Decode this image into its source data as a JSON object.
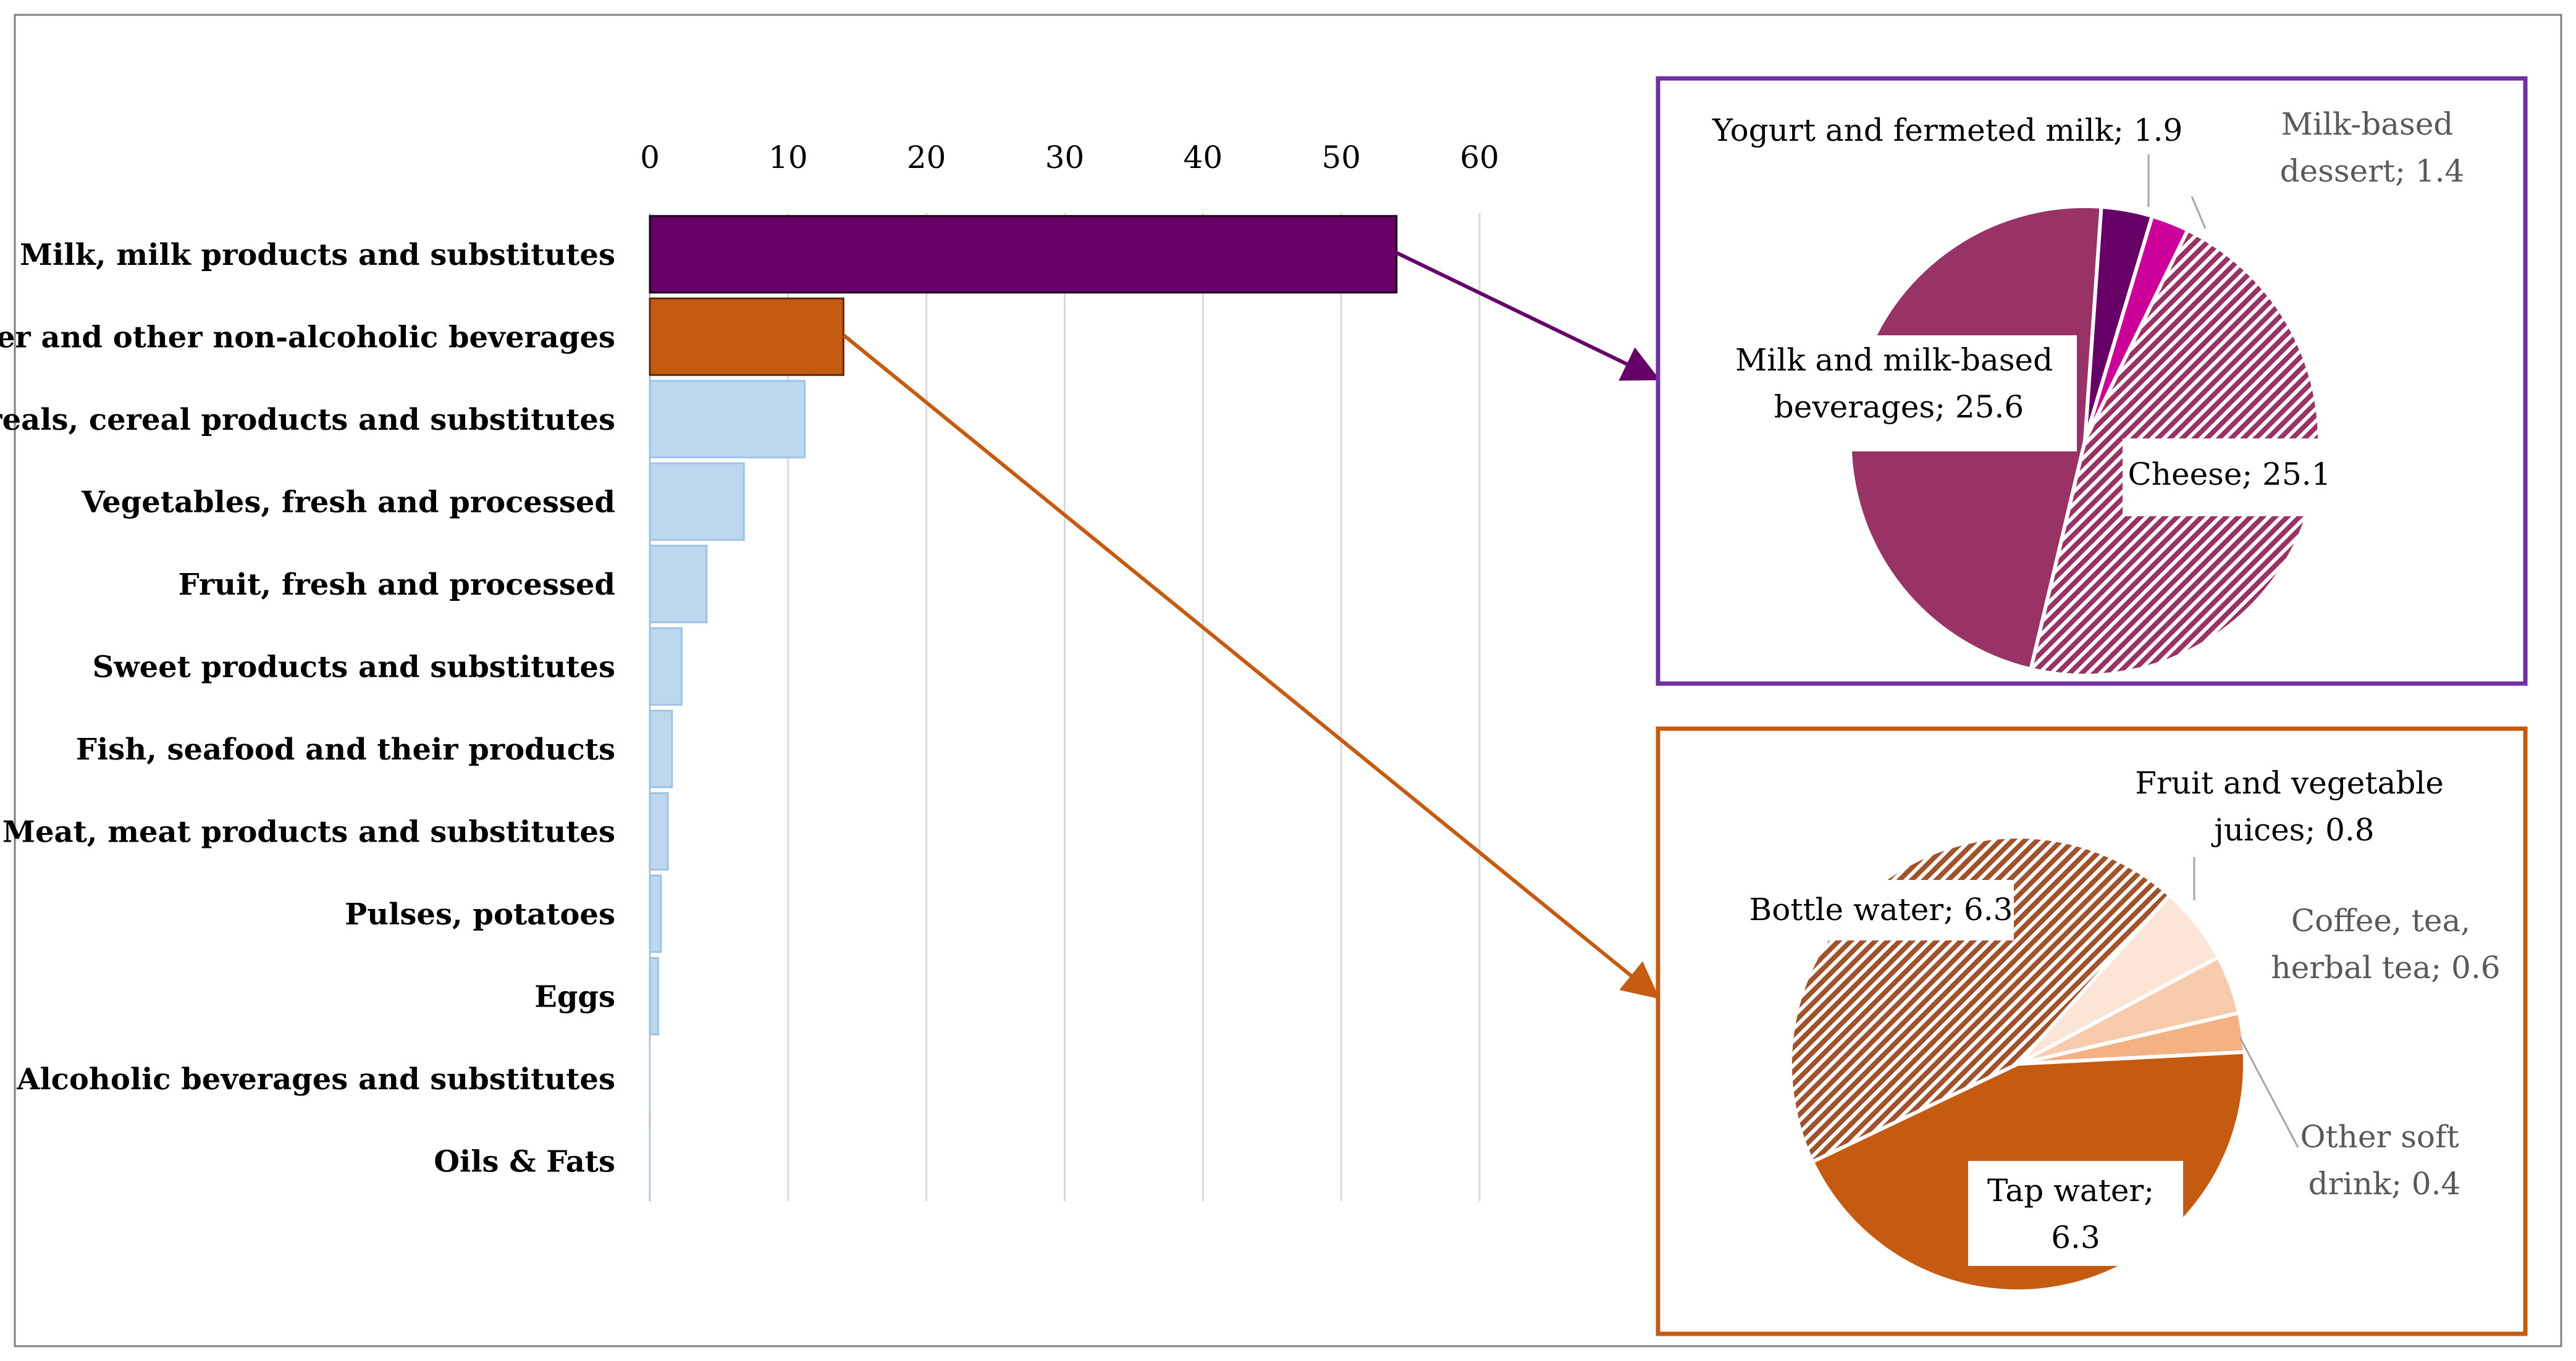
{
  "chart_data": [
    {
      "type": "bar",
      "orientation": "horizontal",
      "categories": [
        "Milk, milk products and substitutes",
        "Water and other non-alcoholic beverages",
        "Cereals, cereal products and substitutes",
        "Vegetables, fresh and processed",
        "Fruit, fresh and processed",
        "Sweet products and substitutes",
        "Fish, seafood and their products",
        "Meat, meat products and substitutes",
        "Pulses, potatoes",
        "Eggs",
        "Alcoholic beverages and substitutes",
        "Oils & Fats"
      ],
      "values": [
        54,
        14,
        11.2,
        6.8,
        4.1,
        2.3,
        1.6,
        1.3,
        0.8,
        0.6,
        0.05,
        0.05
      ],
      "ticks": [
        "0",
        "10",
        "20",
        "30",
        "40",
        "50",
        "60"
      ],
      "xlim": [
        0,
        60
      ],
      "grid": true,
      "xaxis_position": "top",
      "colors": [
        "#660066",
        "#c55a11",
        "#bdd7ee",
        "#bdd7ee",
        "#bdd7ee",
        "#bdd7ee",
        "#bdd7ee",
        "#bdd7ee",
        "#bdd7ee",
        "#bdd7ee",
        "#bdd7ee",
        "#bdd7ee"
      ],
      "title": "",
      "xlabel": "",
      "ylabel": ""
    },
    {
      "type": "pie",
      "detail_of": "Milk, milk products and substitutes",
      "frame_color": "#7030a0",
      "slices": [
        {
          "label": "Yogurt and fermeted milk; 1.9",
          "value": 1.9,
          "color": "#660066",
          "pattern": false
        },
        {
          "label": "Milk-based dessert; 1.4",
          "label_lines": [
            "Milk-based",
            "dessert; 1.4"
          ],
          "value": 1.4,
          "color": "#cc0099",
          "pattern": false
        },
        {
          "label": "Cheese; 25.1",
          "value": 25.1,
          "color": "#993366",
          "pattern": true
        },
        {
          "label": "Milk and milk-based beverages; 25.6",
          "label_lines": [
            "Milk and milk-based",
            "beverages; 25.6"
          ],
          "value": 25.6,
          "color": "#993366",
          "pattern": false
        }
      ]
    },
    {
      "type": "pie",
      "detail_of": "Water and other non-alcoholic beverages",
      "frame_color": "#c55a11",
      "slices": [
        {
          "label": "Fruit and vegetable juices; 0.8",
          "label_lines": [
            "Fruit and vegetable",
            "juices; 0.8"
          ],
          "value": 0.8,
          "color": "#fbe5d6",
          "pattern": false
        },
        {
          "label": "Coffee, tea, herbal tea; 0.6",
          "label_lines": [
            "Coffee, tea,",
            "herbal tea; 0.6"
          ],
          "value": 0.6,
          "color": "#f8cbad",
          "pattern": false
        },
        {
          "label": "Other soft drink; 0.4",
          "label_lines": [
            "Other soft",
            "drink; 0.4"
          ],
          "value": 0.4,
          "color": "#f4b183",
          "pattern": false
        },
        {
          "label": "Tap water; 6.3",
          "label_lines": [
            "Tap water;",
            "6.3"
          ],
          "value": 6.3,
          "color": "#c55a11",
          "pattern": false
        },
        {
          "label": "Bottle water; 6.3",
          "value": 6.3,
          "color": "#a0522d",
          "pattern": true
        }
      ]
    }
  ]
}
